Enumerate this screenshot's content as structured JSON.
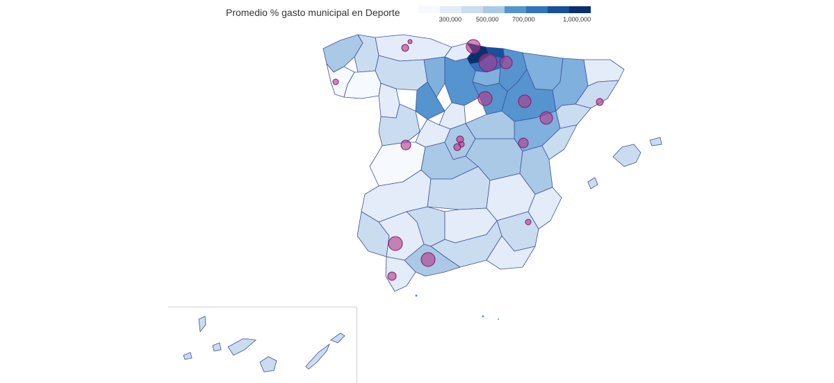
{
  "title": "Promedio % gasto municipal en Deporte",
  "legend": {
    "colors": [
      "#f6f9fd",
      "#e3ecf8",
      "#cadcf0",
      "#a9c9e7",
      "#7fb0de",
      "#5594cf",
      "#2f74bd",
      "#17509b",
      "#08306b"
    ],
    "ticks": [
      {
        "label": "300,000",
        "frac": 0.185
      },
      {
        "label": "500,000",
        "frac": 0.4
      },
      {
        "label": "700,000",
        "frac": 0.61
      },
      {
        "label": "1,000,000",
        "frac": 0.92
      }
    ]
  },
  "colors": {
    "border": "#3c4f9a",
    "bubble_fill": "#b0388a",
    "bubble_stroke": "#8a1566",
    "box": "#cfcfcf"
  }
}
